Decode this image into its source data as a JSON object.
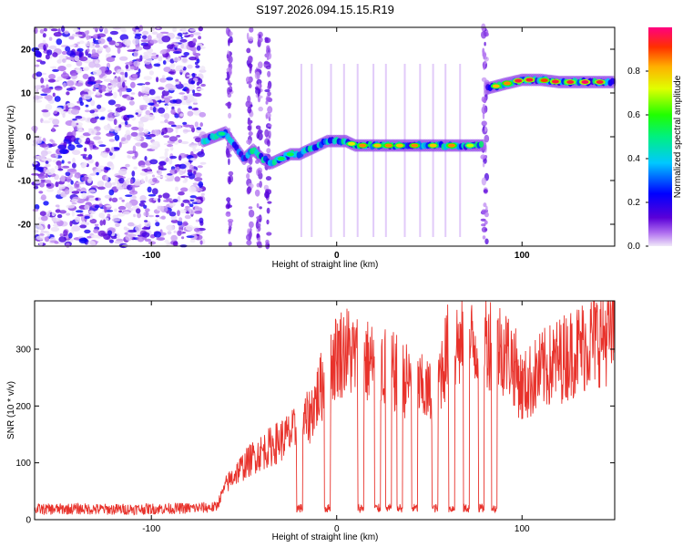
{
  "figure_title": "S197.2026.094.15.15.R19",
  "chart_data": [
    {
      "type": "heatmap",
      "xlabel": "Height of straight line (km)",
      "ylabel": "Frequency (Hz)",
      "xlim": [
        -163,
        150
      ],
      "ylim": [
        -25,
        25
      ],
      "xticks": [
        -100,
        0,
        100
      ],
      "yticks": [
        -20,
        -10,
        0,
        10,
        20
      ],
      "colorbar": {
        "label": "Normalized spectral amplitude",
        "range": [
          0,
          1
        ],
        "ticks": [
          "0.0",
          "0.2",
          "0.4",
          "0.6",
          "0.8"
        ]
      },
      "dominant_frequency_track": {
        "x": [
          -72,
          -60,
          -55,
          -50,
          -45,
          -40,
          -35,
          -30,
          -25,
          -20,
          -15,
          -10,
          -5,
          0,
          5,
          10,
          20,
          30,
          40,
          50,
          60,
          70,
          79,
          81,
          90,
          100,
          110,
          120,
          130,
          140,
          148
        ],
        "freq": [
          -1,
          1,
          -2,
          -5,
          -3,
          -5,
          -6,
          -5,
          -4,
          -4,
          -3,
          -2,
          -1,
          -1,
          -1,
          -2,
          -2,
          -2,
          -2,
          -2,
          -2,
          -2,
          -2,
          11,
          12,
          13,
          13,
          12.5,
          12.5,
          12.5,
          12.5
        ]
      },
      "noise_region_x": [
        -163,
        -72
      ]
    },
    {
      "type": "line",
      "xlabel": "Height of straight line (km)",
      "ylabel": "SNR (10 * v/v)",
      "xlim": [
        -163,
        150
      ],
      "ylim": [
        0,
        385
      ],
      "xticks": [
        -100,
        0,
        100
      ],
      "yticks": [
        0,
        100,
        200,
        300
      ],
      "series": [
        {
          "name": "SNR",
          "color": "#e8322b",
          "x": [
            -163,
            -140,
            -120,
            -100,
            -80,
            -65,
            -60,
            -55,
            -50,
            -45,
            -40,
            -35,
            -30,
            -25,
            -20,
            -15,
            -10,
            -5,
            0,
            5,
            10,
            15,
            20,
            25,
            30,
            35,
            40,
            45,
            50,
            55,
            60,
            65,
            70,
            75,
            80,
            85,
            90,
            95,
            100,
            110,
            120,
            130,
            140,
            150
          ],
          "values": [
            18,
            19,
            18,
            19,
            20,
            22,
            60,
            80,
            95,
            110,
            120,
            130,
            140,
            150,
            160,
            180,
            220,
            260,
            290,
            300,
            285,
            280,
            275,
            270,
            260,
            250,
            240,
            230,
            220,
            250,
            300,
            310,
            300,
            310,
            320,
            310,
            300,
            280,
            230,
            260,
            280,
            300,
            320,
            330
          ]
        }
      ],
      "dropout_centers_x": [
        -20,
        -5,
        13,
        22,
        28,
        34,
        42,
        53,
        62,
        70,
        78,
        85
      ]
    }
  ]
}
